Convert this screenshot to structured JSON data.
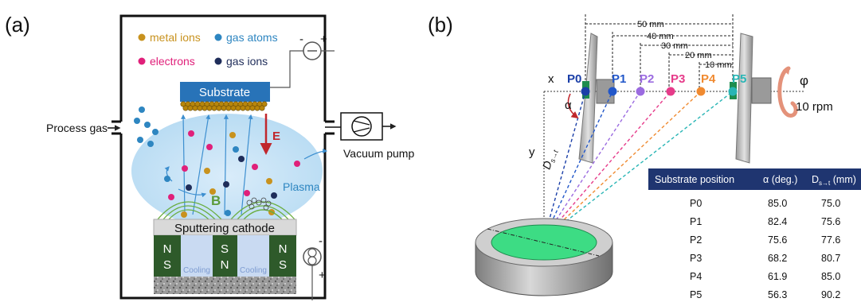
{
  "panel_a": {
    "label": "(a)",
    "legend": {
      "metal_ions": "metal ions",
      "gas_atoms": "gas atoms",
      "electrons": "electrons",
      "gas_ions": "gas ions"
    },
    "substrate": "Substrate",
    "process_gas": "Process gas",
    "vacuum_pump": "Vacuum pump",
    "field_label": "E",
    "plasma": "Plasma",
    "magnetic_label": "B",
    "cathode": "Sputtering  cathode",
    "magnet_left": [
      "N",
      "S"
    ],
    "magnet_center": [
      "S",
      "N"
    ],
    "magnet_right": [
      "N",
      "S"
    ],
    "cooling": "Cooling",
    "minus_sign": "-",
    "plus_sign": "+",
    "colors": {
      "metal_ion": "#c8921e",
      "gas_atom": "#2e86c1",
      "electron": "#e0207a",
      "gas_ion": "#1f2d5a",
      "substrate": "#2873b8",
      "magnet": "#2e5a2a",
      "plasma": "#cfe6f7"
    }
  },
  "panel_b": {
    "label": "(b)",
    "positions": [
      "P0",
      "P1",
      "P2",
      "P3",
      "P4",
      "P5"
    ],
    "position_colors": [
      "#1b3fa8",
      "#2257c9",
      "#9b6be0",
      "#e63b8a",
      "#f08a30",
      "#28b5b5"
    ],
    "distances": [
      "50 mm",
      "40 mm",
      "30 mm",
      "20 mm",
      "10 mm"
    ],
    "x_axis": "x",
    "y_axis": "y",
    "alpha": "α",
    "phi": "φ",
    "rpm": "10 rpm",
    "dst_label": "D",
    "dst_sub": "s→t",
    "table": {
      "headers": [
        "Substrate position",
        "α (deg.)",
        "D"
      ],
      "header_sub": "s→t",
      "header_unit": " (mm)",
      "rows": [
        [
          "P0",
          "85.0",
          "75.0"
        ],
        [
          "P1",
          "82.4",
          "75.6"
        ],
        [
          "P2",
          "75.6",
          "77.6"
        ],
        [
          "P3",
          "68.2",
          "80.7"
        ],
        [
          "P4",
          "61.9",
          "85.0"
        ],
        [
          "P5",
          "56.3",
          "90.2"
        ]
      ]
    }
  }
}
